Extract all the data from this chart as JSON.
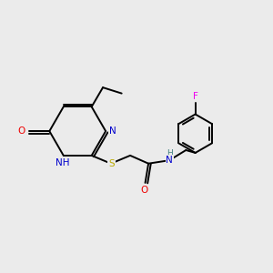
{
  "bg_color": "#ebebeb",
  "atom_colors": {
    "C": "#000000",
    "N": "#0000cc",
    "O": "#ee0000",
    "S": "#bbaa00",
    "F": "#ee00ee",
    "H": "#408080"
  },
  "figsize": [
    3.0,
    3.0
  ],
  "dpi": 100,
  "lw": 1.4
}
